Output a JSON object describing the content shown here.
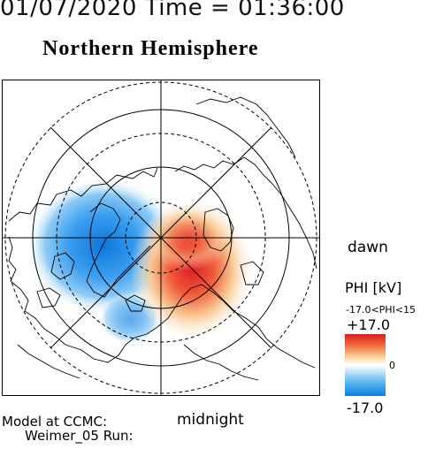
{
  "header": {
    "datetime": "01/07/2020 Time = 01:36:00"
  },
  "title": "Northern Hemisphere",
  "orientation": {
    "dawn": "dawn",
    "midnight": "midnight"
  },
  "credits": {
    "model": "Model at CCMC:",
    "run": "Weimer_05 Run:"
  },
  "colorbar": {
    "title": "PHI [kV]",
    "range_text": "-17.0<PHI<15",
    "max_label": "+17.0",
    "zero_label": "0",
    "min_label": "-17.0",
    "colors": {
      "max": "#d42020",
      "mid": "#ffffff",
      "min": "#0d7fe0"
    }
  },
  "map": {
    "projection": "polar stereographic",
    "grid": true,
    "coastlines": true,
    "potential_cells": [
      {
        "sign": "negative",
        "color": "#1a86e6",
        "side": "left"
      },
      {
        "sign": "positive",
        "color": "#e8262a",
        "side": "right"
      }
    ]
  }
}
